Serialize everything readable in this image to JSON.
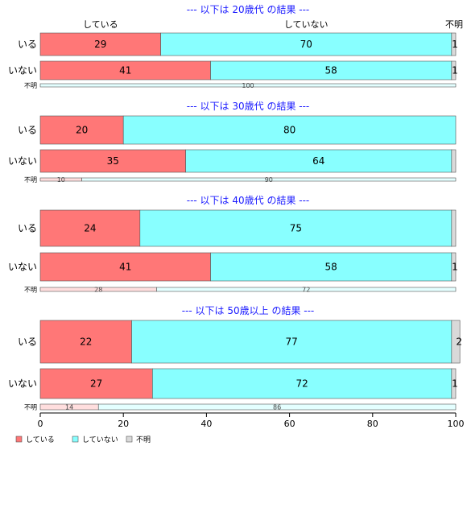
{
  "legend": [
    {
      "label": "している",
      "color": "#ff7777"
    },
    {
      "label": "していない",
      "color": "#88ffff"
    },
    {
      "label": "不明",
      "color": "#d9d9d9"
    }
  ],
  "column_headers": [
    "している",
    "していない",
    "不明"
  ],
  "chart_data": {
    "type": "bar",
    "orientation": "horizontal-stacked",
    "xlim": [
      0,
      100
    ],
    "x_ticks": [
      "0",
      "20",
      "40",
      "60",
      "80",
      "100"
    ],
    "series_names": [
      "している",
      "していない",
      "不明"
    ],
    "groups": [
      {
        "title": "--- 以下は 20歳代 の結果 ---",
        "rows": [
          {
            "label": "いる",
            "values": [
              29,
              70,
              1
            ],
            "labels": [
              "29",
              "70",
              "1"
            ],
            "thin": false
          },
          {
            "label": "いない",
            "values": [
              41,
              58,
              1
            ],
            "labels": [
              "41",
              "58",
              "1"
            ],
            "thin": false
          },
          {
            "label": "不明",
            "values": [
              0,
              100,
              0
            ],
            "labels": [
              "",
              "100",
              ""
            ],
            "thin": true
          }
        ]
      },
      {
        "title": "--- 以下は 30歳代 の結果 ---",
        "rows": [
          {
            "label": "いる",
            "values": [
              20,
              80,
              0
            ],
            "labels": [
              "20",
              "80",
              ""
            ],
            "thin": false
          },
          {
            "label": "いない",
            "values": [
              35,
              64,
              1
            ],
            "labels": [
              "35",
              "64",
              ""
            ],
            "thin": false
          },
          {
            "label": "不明",
            "values": [
              10,
              90,
              0
            ],
            "labels": [
              "10",
              "90",
              ""
            ],
            "thin": true
          }
        ]
      },
      {
        "title": "--- 以下は 40歳代 の結果 ---",
        "rows": [
          {
            "label": "いる",
            "values": [
              24,
              75,
              1
            ],
            "labels": [
              "24",
              "75",
              ""
            ],
            "thin": false
          },
          {
            "label": "いない",
            "values": [
              41,
              58,
              1
            ],
            "labels": [
              "41",
              "58",
              "1"
            ],
            "thin": false
          },
          {
            "label": "不明",
            "values": [
              28,
              72,
              0
            ],
            "labels": [
              "28",
              "72",
              ""
            ],
            "thin": true
          }
        ]
      },
      {
        "title": "--- 以下は 50歳以上 の結果 ---",
        "rows": [
          {
            "label": "いる",
            "values": [
              22,
              77,
              2
            ],
            "labels": [
              "22",
              "77",
              "2"
            ],
            "thin": false
          },
          {
            "label": "いない",
            "values": [
              27,
              72,
              1
            ],
            "labels": [
              "27",
              "72",
              "1"
            ],
            "thin": false
          },
          {
            "label": "不明",
            "values": [
              14,
              86,
              0
            ],
            "labels": [
              "14",
              "86",
              ""
            ],
            "thin": true
          }
        ]
      }
    ]
  }
}
